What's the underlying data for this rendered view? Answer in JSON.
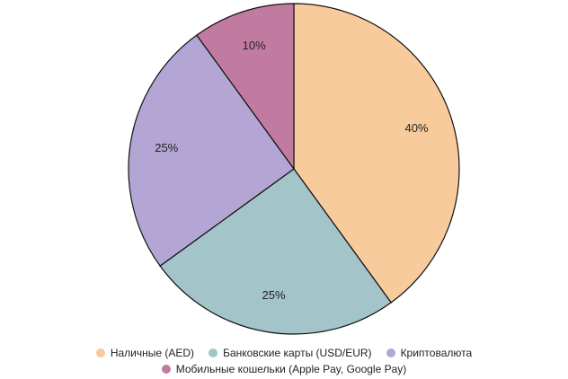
{
  "chart_data": {
    "type": "pie",
    "categories": [
      "Наличные (AED)",
      "Банковские карты (USD/EUR)",
      "Криптовалюта",
      "Мобильные кошельки (Apple Pay, Google Pay)"
    ],
    "values": [
      40,
      25,
      25,
      10
    ],
    "value_labels": [
      "40%",
      "25%",
      "25%",
      "10%"
    ],
    "colors": [
      "#f8cb9c",
      "#a3c4c8",
      "#b3a6d4",
      "#c27ba0"
    ],
    "legend": "bottom"
  }
}
